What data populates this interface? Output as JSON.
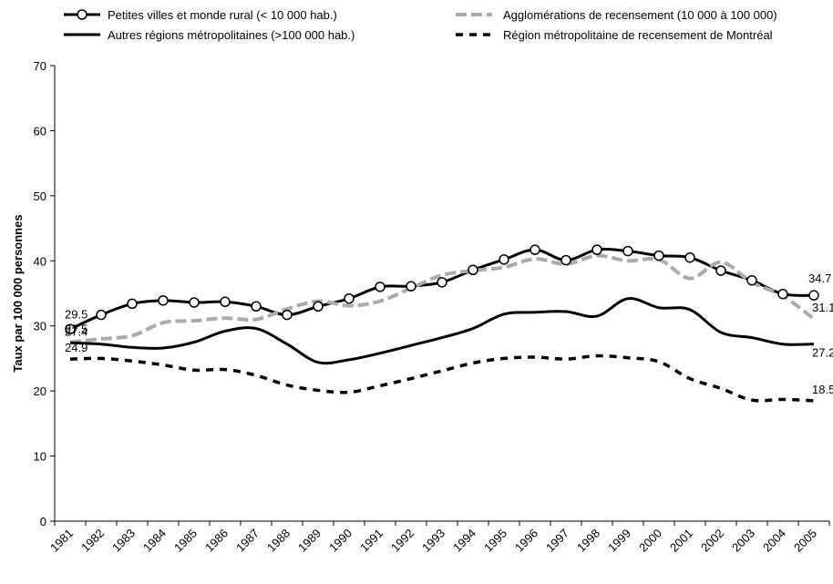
{
  "chart_data": {
    "type": "line",
    "y_label": "Taux par 100 000 personnes",
    "categories": [
      "1981",
      "1982",
      "1983",
      "1984",
      "1985",
      "1986",
      "1987",
      "1988",
      "1989",
      "1990",
      "1991",
      "1992",
      "1993",
      "1994",
      "1995",
      "1996",
      "1997",
      "1998",
      "1999",
      "2000",
      "2001",
      "2002",
      "2003",
      "2004",
      "2005"
    ],
    "series": [
      {
        "name": "Petites villes et monde rural (< 10 000 hab.)",
        "color": "#000000",
        "marker": "circle",
        "dash": "solid",
        "values": [
          29.5,
          31.7,
          33.4,
          33.9,
          33.6,
          33.7,
          33.0,
          31.7,
          33.0,
          34.2,
          36.0,
          36.1,
          36.7,
          38.6,
          40.2,
          41.7,
          40.1,
          41.7,
          41.5,
          40.8,
          40.5,
          38.5,
          37.0,
          34.9,
          34.7
        ]
      },
      {
        "name": "Agglomérations de recensement (10 000 à 100 000)",
        "color": "#aaaaaa",
        "dash": "dashed",
        "values": [
          27.5,
          28.0,
          28.5,
          30.5,
          30.8,
          31.2,
          31.0,
          32.6,
          33.8,
          33.1,
          33.8,
          35.8,
          37.8,
          38.5,
          39.0,
          40.3,
          39.5,
          40.8,
          40.0,
          40.2,
          37.3,
          39.8,
          36.7,
          34.6,
          31.1
        ]
      },
      {
        "name": "Autres régions métropolitaines (>100 000 hab.)",
        "color": "#000000",
        "dash": "solid",
        "values": [
          27.4,
          27.2,
          26.7,
          26.6,
          27.5,
          29.2,
          29.6,
          27.2,
          24.4,
          24.8,
          25.8,
          27.0,
          28.2,
          29.6,
          31.8,
          32.1,
          32.2,
          31.5,
          34.2,
          32.8,
          32.5,
          29.0,
          28.2,
          27.2,
          27.2
        ]
      },
      {
        "name": "Région métropolitaine de recensement de Montréal",
        "color": "#000000",
        "dash": "dashed",
        "values": [
          24.9,
          25.0,
          24.6,
          24.0,
          23.2,
          23.3,
          22.4,
          20.9,
          20.1,
          19.8,
          20.8,
          21.9,
          23.1,
          24.3,
          25.0,
          25.2,
          24.9,
          25.4,
          25.1,
          24.5,
          21.9,
          20.4,
          18.6,
          18.7,
          18.5
        ]
      }
    ],
    "ylim": [
      0,
      70
    ],
    "yticks": [
      0,
      10,
      20,
      30,
      40,
      50,
      60,
      70
    ],
    "grid": false
  }
}
